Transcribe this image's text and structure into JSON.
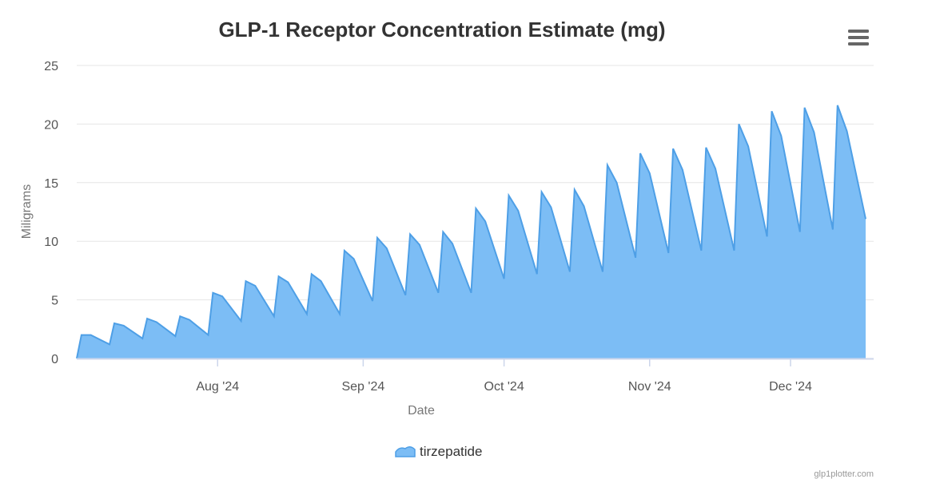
{
  "menu_icon": "hamburger-menu-icon",
  "credit": "glp1plotter.com",
  "colors": {
    "area_fill": "#7cbdf5",
    "area_line": "#4e9fe6",
    "grid": "#e6e6e6",
    "axis": "#ccd6eb"
  },
  "chart_data": {
    "type": "area",
    "title": "GLP-1 Receptor Concentration Estimate (mg)",
    "xlabel": "Date",
    "ylabel": "Miligrams",
    "ylim": [
      0,
      25
    ],
    "yticks": [
      0,
      5,
      10,
      15,
      20,
      25
    ],
    "xlim": [
      "2024-07-02",
      "2024-12-17"
    ],
    "xticks": [
      {
        "date": "2024-08-01",
        "label": "Aug '24"
      },
      {
        "date": "2024-09-01",
        "label": "Sep '24"
      },
      {
        "date": "2024-10-01",
        "label": "Oct '24"
      },
      {
        "date": "2024-11-01",
        "label": "Nov '24"
      },
      {
        "date": "2024-12-01",
        "label": "Dec '24"
      }
    ],
    "grid": true,
    "legend": "bottom-center",
    "series": [
      {
        "name": "tirzepatide",
        "points": [
          [
            "2024-07-02",
            0.0
          ],
          [
            "2024-07-03",
            2.0
          ],
          [
            "2024-07-05",
            2.0
          ],
          [
            "2024-07-09",
            1.2
          ],
          [
            "2024-07-10",
            3.0
          ],
          [
            "2024-07-12",
            2.8
          ],
          [
            "2024-07-16",
            1.7
          ],
          [
            "2024-07-17",
            3.4
          ],
          [
            "2024-07-19",
            3.1
          ],
          [
            "2024-07-23",
            1.9
          ],
          [
            "2024-07-24",
            3.6
          ],
          [
            "2024-07-26",
            3.3
          ],
          [
            "2024-07-30",
            2.0
          ],
          [
            "2024-07-31",
            5.6
          ],
          [
            "2024-08-02",
            5.3
          ],
          [
            "2024-08-06",
            3.2
          ],
          [
            "2024-08-07",
            6.6
          ],
          [
            "2024-08-09",
            6.2
          ],
          [
            "2024-08-13",
            3.6
          ],
          [
            "2024-08-14",
            7.0
          ],
          [
            "2024-08-16",
            6.5
          ],
          [
            "2024-08-20",
            3.8
          ],
          [
            "2024-08-21",
            7.2
          ],
          [
            "2024-08-23",
            6.6
          ],
          [
            "2024-08-27",
            3.8
          ],
          [
            "2024-08-28",
            9.2
          ],
          [
            "2024-08-30",
            8.5
          ],
          [
            "2024-09-03",
            4.9
          ],
          [
            "2024-09-04",
            10.3
          ],
          [
            "2024-09-06",
            9.4
          ],
          [
            "2024-09-10",
            5.4
          ],
          [
            "2024-09-11",
            10.6
          ],
          [
            "2024-09-13",
            9.7
          ],
          [
            "2024-09-17",
            5.6
          ],
          [
            "2024-09-18",
            10.8
          ],
          [
            "2024-09-20",
            9.8
          ],
          [
            "2024-09-24",
            5.6
          ],
          [
            "2024-09-25",
            12.8
          ],
          [
            "2024-09-27",
            11.7
          ],
          [
            "2024-10-01",
            6.8
          ],
          [
            "2024-10-02",
            13.9
          ],
          [
            "2024-10-04",
            12.6
          ],
          [
            "2024-10-08",
            7.2
          ],
          [
            "2024-10-09",
            14.2
          ],
          [
            "2024-10-11",
            12.9
          ],
          [
            "2024-10-15",
            7.4
          ],
          [
            "2024-10-16",
            14.4
          ],
          [
            "2024-10-18",
            13.0
          ],
          [
            "2024-10-22",
            7.4
          ],
          [
            "2024-10-23",
            16.5
          ],
          [
            "2024-10-25",
            15.0
          ],
          [
            "2024-10-29",
            8.6
          ],
          [
            "2024-10-30",
            17.5
          ],
          [
            "2024-11-01",
            15.8
          ],
          [
            "2024-11-05",
            9.0
          ],
          [
            "2024-11-06",
            17.9
          ],
          [
            "2024-11-08",
            16.1
          ],
          [
            "2024-11-12",
            9.2
          ],
          [
            "2024-11-13",
            18.0
          ],
          [
            "2024-11-15",
            16.2
          ],
          [
            "2024-11-19",
            9.2
          ],
          [
            "2024-11-20",
            20.0
          ],
          [
            "2024-11-22",
            18.1
          ],
          [
            "2024-11-26",
            10.4
          ],
          [
            "2024-11-27",
            21.1
          ],
          [
            "2024-11-29",
            19.0
          ],
          [
            "2024-12-03",
            10.8
          ],
          [
            "2024-12-04",
            21.4
          ],
          [
            "2024-12-06",
            19.3
          ],
          [
            "2024-12-10",
            11.0
          ],
          [
            "2024-12-11",
            21.6
          ],
          [
            "2024-12-13",
            19.4
          ],
          [
            "2024-12-17",
            11.9
          ]
        ]
      }
    ]
  }
}
